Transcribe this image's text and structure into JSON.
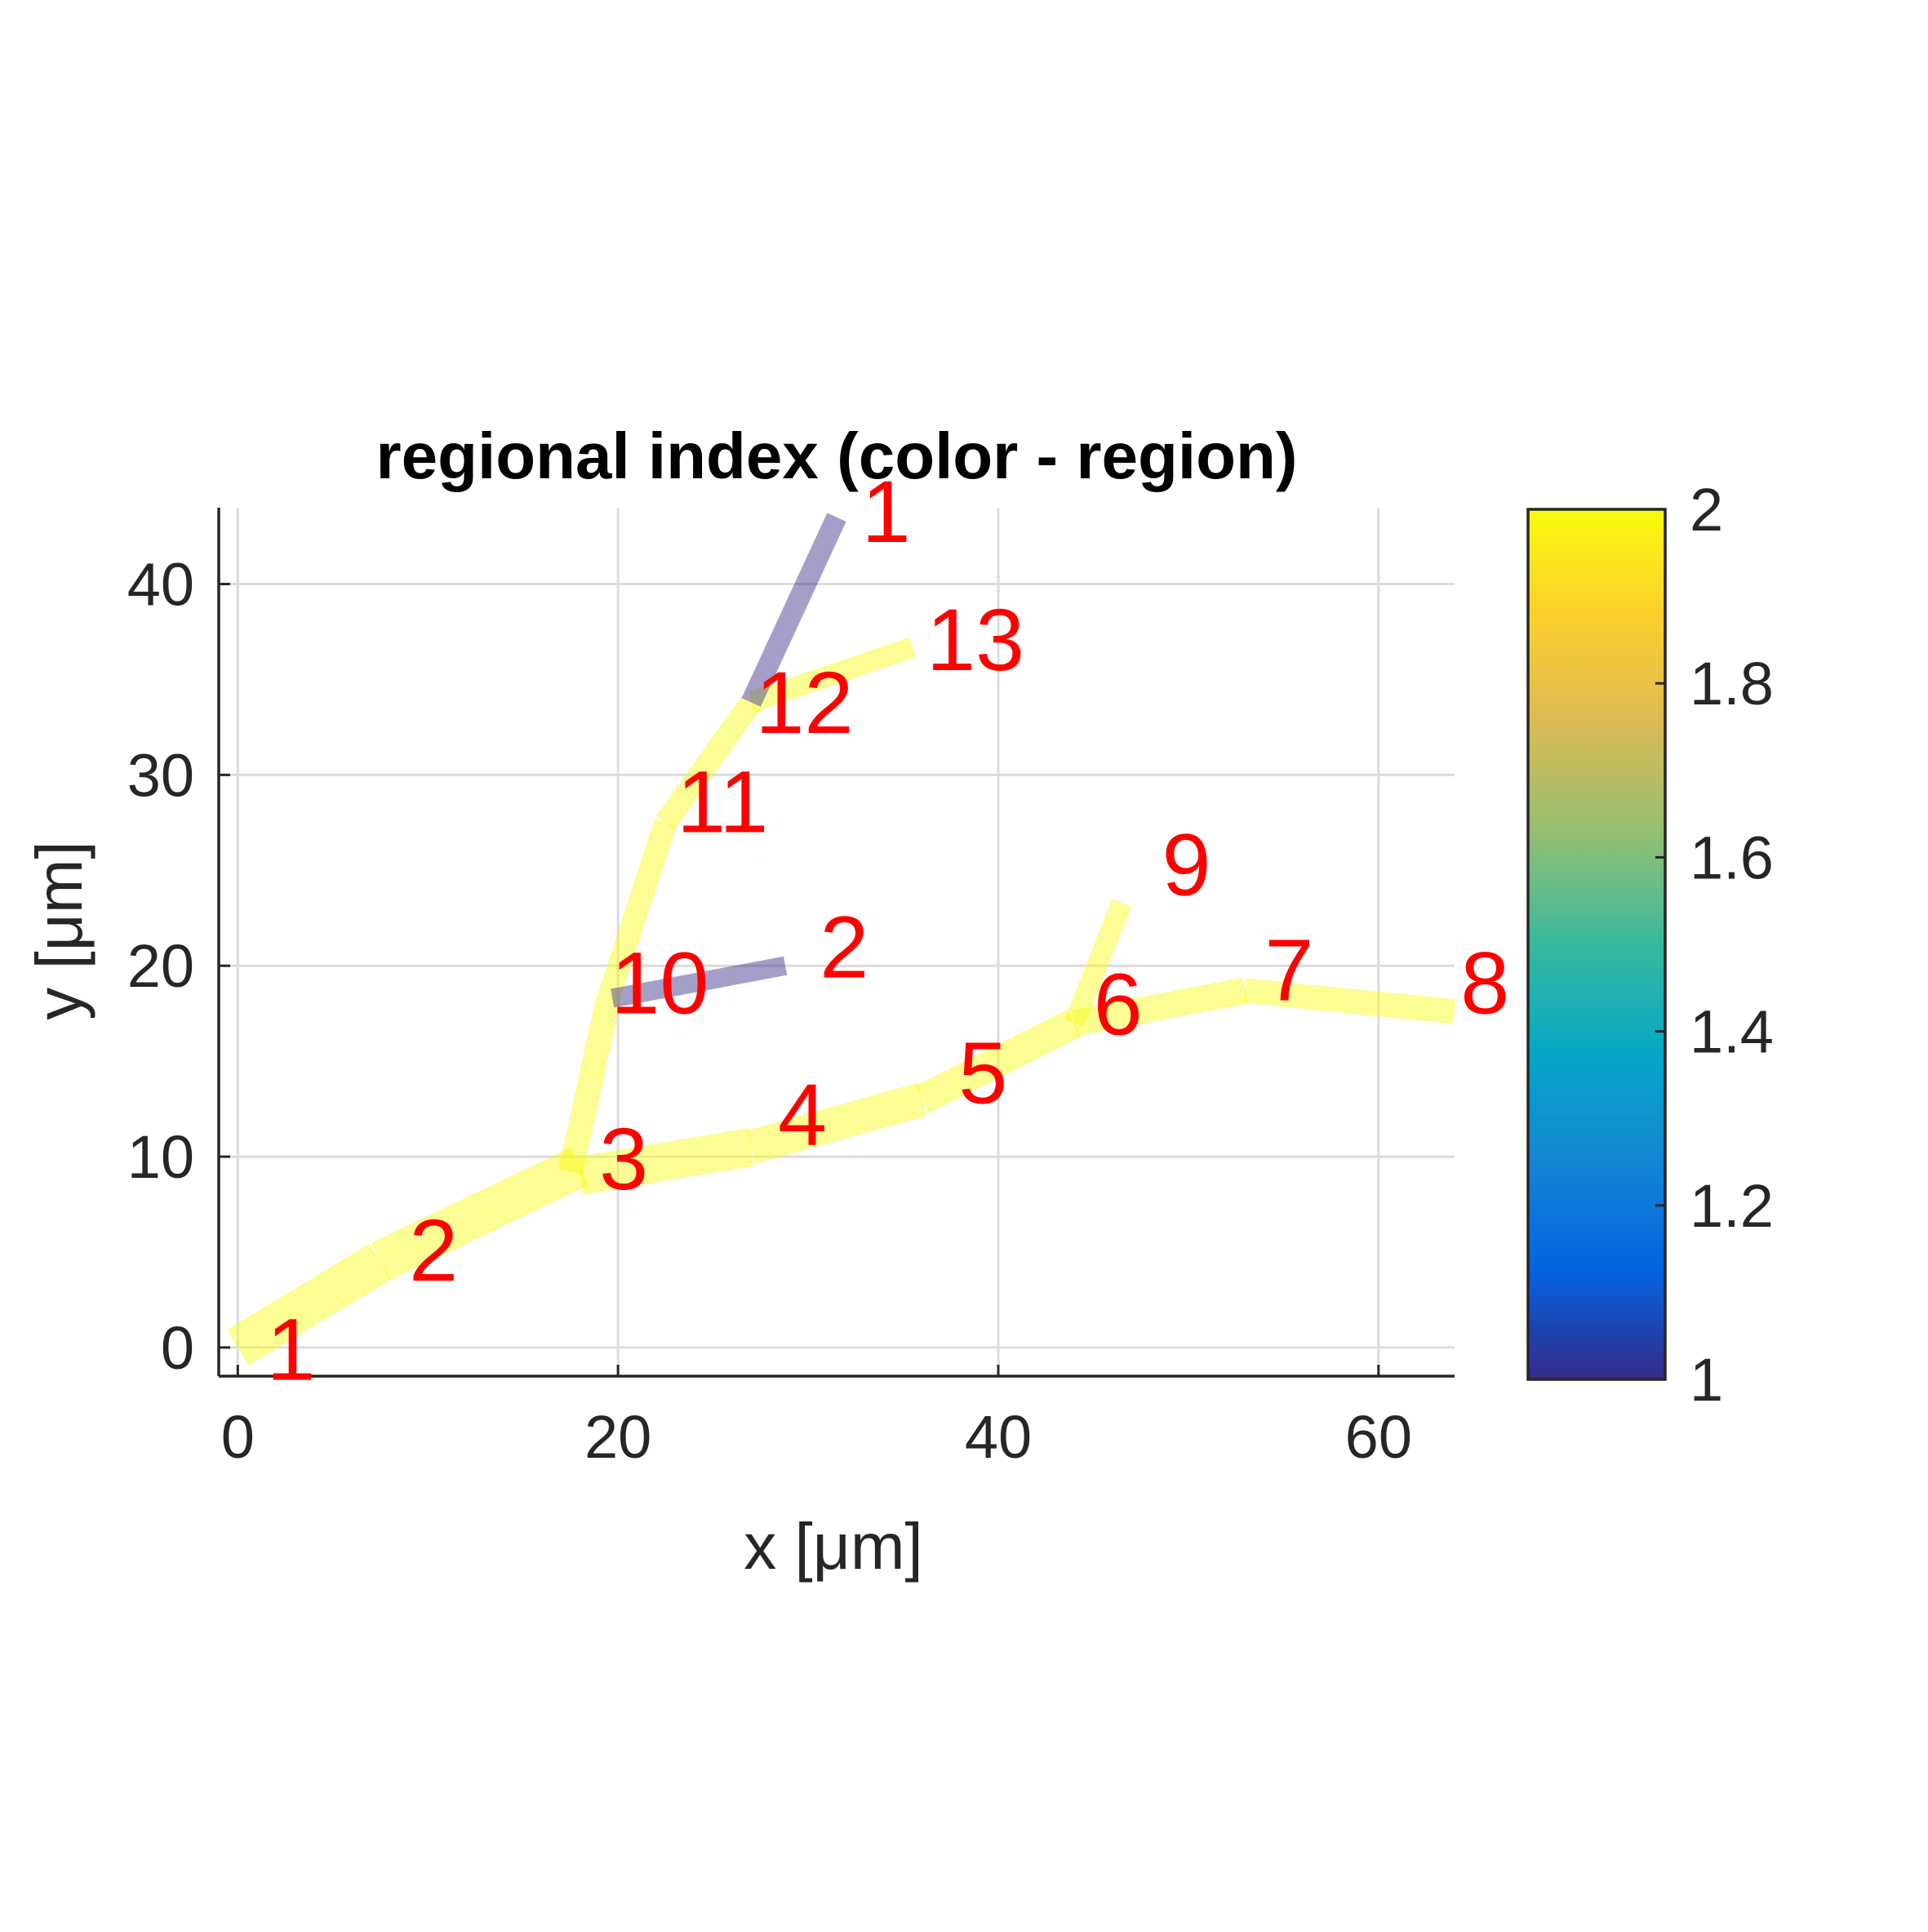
{
  "chart_data": {
    "type": "line",
    "title": "regional index (color - region)",
    "xlabel": "x [μm]",
    "ylabel": "y [μm]",
    "xlim": [
      -1,
      64
    ],
    "ylim": [
      -1.5,
      44
    ],
    "xticks": [
      0,
      20,
      40,
      60
    ],
    "yticks": [
      0,
      10,
      20,
      30,
      40
    ],
    "grid": true,
    "colorbar": {
      "range": [
        1,
        2
      ],
      "ticks": [
        1,
        1.2,
        1.4,
        1.6,
        1.8,
        2
      ],
      "tick_labels": [
        "1",
        "1.2",
        "1.4",
        "1.6",
        "1.8",
        "2"
      ],
      "colormap": [
        "#352a87",
        "#0363e1",
        "#1485d4",
        "#06a7c6",
        "#38b99e",
        "#92bf73",
        "#d9ba56",
        "#fcce2e",
        "#f9fb0e"
      ]
    },
    "segments": [
      {
        "region": 2,
        "x": [
          0,
          7.5
        ],
        "y": [
          0,
          4.5
        ],
        "width": 2.2
      },
      {
        "region": 2,
        "x": [
          7.5,
          18
        ],
        "y": [
          4.5,
          9.5
        ],
        "width": 2.2
      },
      {
        "region": 2,
        "x": [
          18,
          27
        ],
        "y": [
          9,
          10.5
        ],
        "width": 2.0
      },
      {
        "region": 2,
        "x": [
          27,
          36
        ],
        "y": [
          10.5,
          13
        ],
        "width": 1.8
      },
      {
        "region": 2,
        "x": [
          36,
          44
        ],
        "y": [
          13,
          17
        ],
        "width": 1.6
      },
      {
        "region": 2,
        "x": [
          44,
          53
        ],
        "y": [
          17,
          18.7
        ],
        "width": 1.4
      },
      {
        "region": 2,
        "x": [
          53,
          64
        ],
        "y": [
          18.7,
          17.6
        ],
        "width": 1.3
      },
      {
        "region": 2,
        "x": [
          44,
          46.5
        ],
        "y": [
          17,
          23.3
        ],
        "width": 1.1
      },
      {
        "region": 2,
        "x": [
          17.5,
          19.5
        ],
        "y": [
          9.2,
          18.3
        ],
        "width": 1.3
      },
      {
        "region": 2,
        "x": [
          19.5,
          22.5
        ],
        "y": [
          18.3,
          27.5
        ],
        "width": 1.2
      },
      {
        "region": 2,
        "x": [
          22.5,
          27
        ],
        "y": [
          27.5,
          33.8
        ],
        "width": 1.2
      },
      {
        "region": 2,
        "x": [
          27,
          35.5
        ],
        "y": [
          33.8,
          36.7
        ],
        "width": 1.1
      },
      {
        "region": 1,
        "x": [
          27,
          31.5
        ],
        "y": [
          33.8,
          43.5
        ],
        "width": 1.1
      },
      {
        "region": 1,
        "x": [
          19.7,
          28.8
        ],
        "y": [
          18.3,
          20
        ],
        "width": 1.0
      }
    ],
    "labels": [
      {
        "text": "1",
        "x": 2.8,
        "y": -1.7
      },
      {
        "text": "2",
        "x": 10.3,
        "y": 3.5
      },
      {
        "text": "3",
        "x": 20.3,
        "y": 8.3
      },
      {
        "text": "4",
        "x": 29.7,
        "y": 10.6
      },
      {
        "text": "5",
        "x": 39.2,
        "y": 12.8
      },
      {
        "text": "6",
        "x": 46.3,
        "y": 16.4
      },
      {
        "text": "7",
        "x": 55.3,
        "y": 18.2
      },
      {
        "text": "8",
        "x": 65.6,
        "y": 17.5
      },
      {
        "text": "9",
        "x": 49.9,
        "y": 23.7
      },
      {
        "text": "10",
        "x": 22.2,
        "y": 17.5
      },
      {
        "text": "11",
        "x": 25.5,
        "y": 27
      },
      {
        "text": "12",
        "x": 29.8,
        "y": 32.2
      },
      {
        "text": "13",
        "x": 38.8,
        "y": 35.5
      },
      {
        "text": "1",
        "x": 34.1,
        "y": 42.2
      },
      {
        "text": "2",
        "x": 31.9,
        "y": 19.4
      }
    ]
  }
}
